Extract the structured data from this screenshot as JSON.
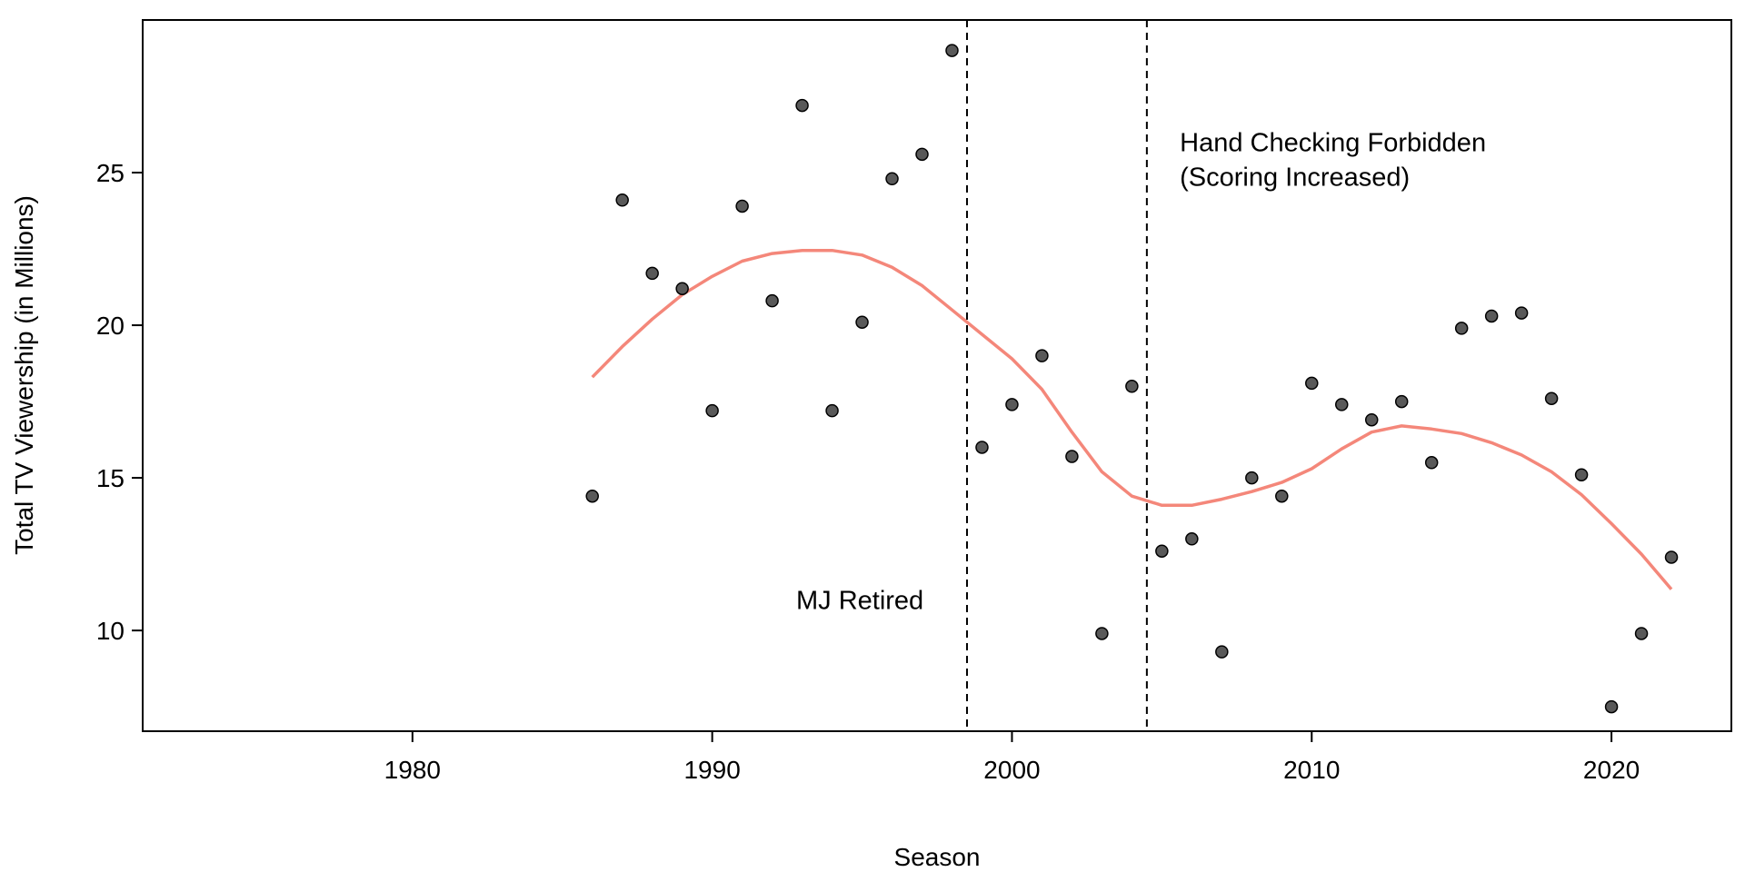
{
  "chart_data": {
    "type": "scatter",
    "title": "",
    "xlabel": "Season",
    "ylabel": "Total TV Viewership (in Millions)",
    "xlim": [
      1971,
      2024
    ],
    "ylim": [
      6.7,
      30
    ],
    "xticks": [
      1980,
      1990,
      2000,
      2010,
      2020
    ],
    "yticks": [
      10,
      15,
      20,
      25
    ],
    "grid": false,
    "colors": {
      "points": "#595959",
      "point_stroke": "#000000",
      "trend": "#f4877a",
      "vlines": "#000000"
    },
    "points": [
      {
        "x": 1986,
        "y": 14.4
      },
      {
        "x": 1987,
        "y": 24.1
      },
      {
        "x": 1988,
        "y": 21.7
      },
      {
        "x": 1989,
        "y": 21.2
      },
      {
        "x": 1990,
        "y": 17.2
      },
      {
        "x": 1991,
        "y": 23.9
      },
      {
        "x": 1992,
        "y": 20.8
      },
      {
        "x": 1993,
        "y": 27.2
      },
      {
        "x": 1994,
        "y": 17.2
      },
      {
        "x": 1995,
        "y": 20.1
      },
      {
        "x": 1996,
        "y": 24.8
      },
      {
        "x": 1997,
        "y": 25.6
      },
      {
        "x": 1998,
        "y": 29.0
      },
      {
        "x": 1999,
        "y": 16.0
      },
      {
        "x": 2000,
        "y": 17.4
      },
      {
        "x": 2001,
        "y": 19.0
      },
      {
        "x": 2002,
        "y": 15.7
      },
      {
        "x": 2003,
        "y": 9.9
      },
      {
        "x": 2004,
        "y": 18.0
      },
      {
        "x": 2005,
        "y": 12.6
      },
      {
        "x": 2006,
        "y": 13.0
      },
      {
        "x": 2007,
        "y": 9.3
      },
      {
        "x": 2008,
        "y": 15.0
      },
      {
        "x": 2009,
        "y": 14.4
      },
      {
        "x": 2010,
        "y": 18.1
      },
      {
        "x": 2011,
        "y": 17.4
      },
      {
        "x": 2012,
        "y": 16.9
      },
      {
        "x": 2013,
        "y": 17.5
      },
      {
        "x": 2014,
        "y": 15.5
      },
      {
        "x": 2015,
        "y": 19.9
      },
      {
        "x": 2016,
        "y": 20.3
      },
      {
        "x": 2017,
        "y": 20.4
      },
      {
        "x": 2018,
        "y": 17.6
      },
      {
        "x": 2019,
        "y": 15.1
      },
      {
        "x": 2020,
        "y": 7.5
      },
      {
        "x": 2021,
        "y": 9.9
      },
      {
        "x": 2022,
        "y": 12.4
      }
    ],
    "trend": [
      {
        "x": 1986,
        "y": 18.3
      },
      {
        "x": 1987,
        "y": 19.3
      },
      {
        "x": 1988,
        "y": 20.2
      },
      {
        "x": 1989,
        "y": 21.0
      },
      {
        "x": 1990,
        "y": 21.6
      },
      {
        "x": 1991,
        "y": 22.1
      },
      {
        "x": 1992,
        "y": 22.35
      },
      {
        "x": 1993,
        "y": 22.45
      },
      {
        "x": 1994,
        "y": 22.45
      },
      {
        "x": 1995,
        "y": 22.3
      },
      {
        "x": 1996,
        "y": 21.9
      },
      {
        "x": 1997,
        "y": 21.3
      },
      {
        "x": 1998,
        "y": 20.5
      },
      {
        "x": 1999,
        "y": 19.7
      },
      {
        "x": 2000,
        "y": 18.9
      },
      {
        "x": 2001,
        "y": 17.9
      },
      {
        "x": 2002,
        "y": 16.5
      },
      {
        "x": 2003,
        "y": 15.2
      },
      {
        "x": 2004,
        "y": 14.4
      },
      {
        "x": 2005,
        "y": 14.1
      },
      {
        "x": 2006,
        "y": 14.1
      },
      {
        "x": 2007,
        "y": 14.3
      },
      {
        "x": 2008,
        "y": 14.55
      },
      {
        "x": 2009,
        "y": 14.85
      },
      {
        "x": 2010,
        "y": 15.3
      },
      {
        "x": 2011,
        "y": 15.95
      },
      {
        "x": 2012,
        "y": 16.5
      },
      {
        "x": 2013,
        "y": 16.7
      },
      {
        "x": 2014,
        "y": 16.6
      },
      {
        "x": 2015,
        "y": 16.45
      },
      {
        "x": 2016,
        "y": 16.15
      },
      {
        "x": 2017,
        "y": 15.75
      },
      {
        "x": 2018,
        "y": 15.2
      },
      {
        "x": 2019,
        "y": 14.45
      },
      {
        "x": 2020,
        "y": 13.5
      },
      {
        "x": 2021,
        "y": 12.5
      },
      {
        "x": 2022,
        "y": 11.35
      }
    ],
    "vlines": [
      {
        "x": 1998.5,
        "label": "MJ Retired"
      },
      {
        "x": 2004.5,
        "label": "Hand Checking Forbidden (Scoring Increased)"
      }
    ],
    "annotations": [
      {
        "lines": [
          "MJ Retired"
        ],
        "x": 1992.8,
        "y": 10.7
      },
      {
        "lines": [
          "Hand Checking Forbidden",
          "(Scoring Increased)"
        ],
        "x": 2005.6,
        "y": 25.7
      }
    ]
  }
}
